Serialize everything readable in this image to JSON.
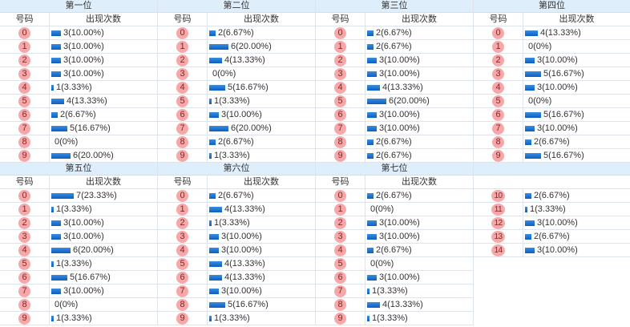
{
  "headers": {
    "code": "号码",
    "count": "出现次数"
  },
  "positions": [
    {
      "title": "第一位",
      "rows": [
        {
          "code": "0",
          "n": 3,
          "text": "3(10.00%)"
        },
        {
          "code": "1",
          "n": 3,
          "text": "3(10.00%)"
        },
        {
          "code": "2",
          "n": 3,
          "text": "3(10.00%)"
        },
        {
          "code": "3",
          "n": 3,
          "text": "3(10.00%)"
        },
        {
          "code": "4",
          "n": 1,
          "text": "1(3.33%)"
        },
        {
          "code": "5",
          "n": 4,
          "text": "4(13.33%)"
        },
        {
          "code": "6",
          "n": 2,
          "text": "2(6.67%)"
        },
        {
          "code": "7",
          "n": 5,
          "text": "5(16.67%)"
        },
        {
          "code": "8",
          "n": 0,
          "text": "0(0%)"
        },
        {
          "code": "9",
          "n": 6,
          "text": "6(20.00%)"
        }
      ]
    },
    {
      "title": "第二位",
      "rows": [
        {
          "code": "0",
          "n": 2,
          "text": "2(6.67%)"
        },
        {
          "code": "1",
          "n": 6,
          "text": "6(20.00%)"
        },
        {
          "code": "2",
          "n": 4,
          "text": "4(13.33%)"
        },
        {
          "code": "3",
          "n": 0,
          "text": "0(0%)"
        },
        {
          "code": "4",
          "n": 5,
          "text": "5(16.67%)"
        },
        {
          "code": "5",
          "n": 1,
          "text": "1(3.33%)"
        },
        {
          "code": "6",
          "n": 3,
          "text": "3(10.00%)"
        },
        {
          "code": "7",
          "n": 6,
          "text": "6(20.00%)"
        },
        {
          "code": "8",
          "n": 2,
          "text": "2(6.67%)"
        },
        {
          "code": "9",
          "n": 1,
          "text": "1(3.33%)"
        }
      ]
    },
    {
      "title": "第三位",
      "rows": [
        {
          "code": "0",
          "n": 2,
          "text": "2(6.67%)"
        },
        {
          "code": "1",
          "n": 2,
          "text": "2(6.67%)"
        },
        {
          "code": "2",
          "n": 3,
          "text": "3(10.00%)"
        },
        {
          "code": "3",
          "n": 3,
          "text": "3(10.00%)"
        },
        {
          "code": "4",
          "n": 4,
          "text": "4(13.33%)"
        },
        {
          "code": "5",
          "n": 6,
          "text": "6(20.00%)"
        },
        {
          "code": "6",
          "n": 3,
          "text": "3(10.00%)"
        },
        {
          "code": "7",
          "n": 3,
          "text": "3(10.00%)"
        },
        {
          "code": "8",
          "n": 2,
          "text": "2(6.67%)"
        },
        {
          "code": "9",
          "n": 2,
          "text": "2(6.67%)"
        }
      ]
    },
    {
      "title": "第四位",
      "rows": [
        {
          "code": "0",
          "n": 4,
          "text": "4(13.33%)"
        },
        {
          "code": "1",
          "n": 0,
          "text": "0(0%)"
        },
        {
          "code": "2",
          "n": 3,
          "text": "3(10.00%)"
        },
        {
          "code": "3",
          "n": 5,
          "text": "5(16.67%)"
        },
        {
          "code": "4",
          "n": 3,
          "text": "3(10.00%)"
        },
        {
          "code": "5",
          "n": 0,
          "text": "0(0%)"
        },
        {
          "code": "6",
          "n": 5,
          "text": "5(16.67%)"
        },
        {
          "code": "7",
          "n": 3,
          "text": "3(10.00%)"
        },
        {
          "code": "8",
          "n": 2,
          "text": "2(6.67%)"
        },
        {
          "code": "9",
          "n": 5,
          "text": "5(16.67%)"
        }
      ]
    },
    {
      "title": "第五位",
      "rows": [
        {
          "code": "0",
          "n": 7,
          "text": "7(23.33%)"
        },
        {
          "code": "1",
          "n": 1,
          "text": "1(3.33%)"
        },
        {
          "code": "2",
          "n": 3,
          "text": "3(10.00%)"
        },
        {
          "code": "3",
          "n": 3,
          "text": "3(10.00%)"
        },
        {
          "code": "4",
          "n": 6,
          "text": "6(20.00%)"
        },
        {
          "code": "5",
          "n": 1,
          "text": "1(3.33%)"
        },
        {
          "code": "6",
          "n": 5,
          "text": "5(16.67%)"
        },
        {
          "code": "7",
          "n": 3,
          "text": "3(10.00%)"
        },
        {
          "code": "8",
          "n": 0,
          "text": "0(0%)"
        },
        {
          "code": "9",
          "n": 1,
          "text": "1(3.33%)"
        }
      ]
    },
    {
      "title": "第六位",
      "rows": [
        {
          "code": "0",
          "n": 2,
          "text": "2(6.67%)"
        },
        {
          "code": "1",
          "n": 4,
          "text": "4(13.33%)"
        },
        {
          "code": "2",
          "n": 1,
          "text": "1(3.33%)"
        },
        {
          "code": "3",
          "n": 3,
          "text": "3(10.00%)"
        },
        {
          "code": "4",
          "n": 3,
          "text": "3(10.00%)"
        },
        {
          "code": "5",
          "n": 4,
          "text": "4(13.33%)"
        },
        {
          "code": "6",
          "n": 4,
          "text": "4(13.33%)"
        },
        {
          "code": "7",
          "n": 3,
          "text": "3(10.00%)"
        },
        {
          "code": "8",
          "n": 5,
          "text": "5(16.67%)"
        },
        {
          "code": "9",
          "n": 1,
          "text": "1(3.33%)"
        }
      ]
    },
    {
      "title": "第七位",
      "rows": [
        {
          "code": "0",
          "n": 2,
          "text": "2(6.67%)"
        },
        {
          "code": "1",
          "n": 0,
          "text": "0(0%)"
        },
        {
          "code": "2",
          "n": 3,
          "text": "3(10.00%)"
        },
        {
          "code": "3",
          "n": 3,
          "text": "3(10.00%)"
        },
        {
          "code": "4",
          "n": 2,
          "text": "2(6.67%)"
        },
        {
          "code": "5",
          "n": 0,
          "text": "0(0%)"
        },
        {
          "code": "6",
          "n": 3,
          "text": "3(10.00%)"
        },
        {
          "code": "7",
          "n": 1,
          "text": "1(3.33%)"
        },
        {
          "code": "8",
          "n": 4,
          "text": "4(13.33%)"
        },
        {
          "code": "9",
          "n": 1,
          "text": "1(3.33%)"
        }
      ]
    },
    {
      "title": "",
      "rows": [
        {
          "code": "10",
          "n": 2,
          "text": "2(6.67%)"
        },
        {
          "code": "11",
          "n": 1,
          "text": "1(3.33%)"
        },
        {
          "code": "12",
          "n": 3,
          "text": "3(10.00%)"
        },
        {
          "code": "13",
          "n": 2,
          "text": "2(6.67%)"
        },
        {
          "code": "14",
          "n": 3,
          "text": "3(10.00%)"
        }
      ]
    }
  ],
  "colors": {
    "header_bg": "#dfeefb",
    "ball": "#f7a7a7",
    "bar": "#0b5fc2",
    "border": "#dde4ec"
  }
}
